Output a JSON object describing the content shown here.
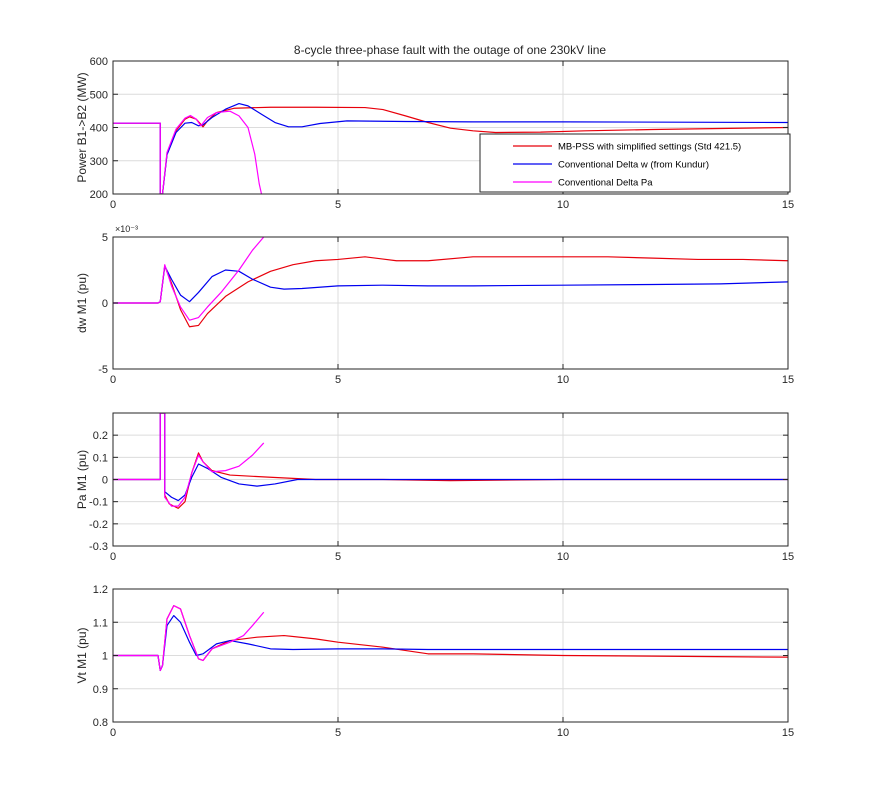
{
  "figure": {
    "title": "8-cycle three-phase fault with the outage of one 230kV line"
  },
  "colors": {
    "mbpss": "#e8000b",
    "delta_w": "#0000f0",
    "delta_pa": "#ff00ff",
    "grid": "#dcdcdc",
    "axis": "#262626"
  },
  "chart_data": [
    {
      "type": "line",
      "panel": "power",
      "ylabel": "Power B1->B2 (MW)",
      "xlabel": "",
      "xlim": [
        0,
        15
      ],
      "ylim": [
        200,
        600
      ],
      "xticks": [
        0,
        5,
        10,
        15
      ],
      "yticks": [
        200,
        300,
        400,
        500,
        600
      ],
      "grid": true,
      "legend": {
        "position": "right-inside",
        "entries": [
          "MB-PSS with simplified settings (Std 421.5)",
          "Conventional Delta w (from Kundur)",
          "Conventional Delta Pa"
        ]
      },
      "series": [
        {
          "name": "MB-PSS with simplified settings (Std 421.5)",
          "color": "#e8000b",
          "points": [
            [
              0,
              413
            ],
            [
              1.05,
              413
            ],
            [
              1.05,
              200
            ],
            [
              1.1,
              200
            ],
            [
              1.2,
              320
            ],
            [
              1.4,
              390
            ],
            [
              1.6,
              425
            ],
            [
              1.7,
              432
            ],
            [
              1.85,
              425
            ],
            [
              2.0,
              402
            ],
            [
              2.1,
              420
            ],
            [
              2.3,
              445
            ],
            [
              2.7,
              458
            ],
            [
              3.5,
              461
            ],
            [
              4.5,
              461
            ],
            [
              5.6,
              460
            ],
            [
              6.0,
              454
            ],
            [
              6.5,
              435
            ],
            [
              7.0,
              415
            ],
            [
              7.5,
              398
            ],
            [
              8.0,
              390
            ],
            [
              8.5,
              385
            ],
            [
              9.5,
              386
            ],
            [
              10.5,
              390
            ],
            [
              12,
              394
            ],
            [
              13.5,
              397
            ],
            [
              15,
              400
            ]
          ]
        },
        {
          "name": "Conventional Delta w (from Kundur)",
          "color": "#0000f0",
          "points": [
            [
              0,
              413
            ],
            [
              1.05,
              413
            ],
            [
              1.05,
              200
            ],
            [
              1.1,
              200
            ],
            [
              1.2,
              318
            ],
            [
              1.4,
              385
            ],
            [
              1.6,
              413
            ],
            [
              1.75,
              415
            ],
            [
              1.9,
              405
            ],
            [
              2.0,
              408
            ],
            [
              2.2,
              430
            ],
            [
              2.5,
              455
            ],
            [
              2.8,
              472
            ],
            [
              3.0,
              465
            ],
            [
              3.3,
              440
            ],
            [
              3.6,
              415
            ],
            [
              3.9,
              402
            ],
            [
              4.2,
              402
            ],
            [
              4.6,
              412
            ],
            [
              5.2,
              420
            ],
            [
              6.5,
              418
            ],
            [
              8,
              417
            ],
            [
              10,
              417
            ],
            [
              12.5,
              416
            ],
            [
              15,
              415
            ]
          ]
        },
        {
          "name": "Conventional Delta Pa",
          "color": "#ff00ff",
          "points": [
            [
              0,
              413
            ],
            [
              1.05,
              413
            ],
            [
              1.05,
              200
            ],
            [
              1.1,
              200
            ],
            [
              1.2,
              325
            ],
            [
              1.4,
              395
            ],
            [
              1.6,
              428
            ],
            [
              1.72,
              436
            ],
            [
              1.85,
              425
            ],
            [
              1.95,
              405
            ],
            [
              2.1,
              430
            ],
            [
              2.3,
              445
            ],
            [
              2.6,
              449
            ],
            [
              2.8,
              435
            ],
            [
              3.0,
              400
            ],
            [
              3.15,
              320
            ],
            [
              3.25,
              230
            ],
            [
              3.3,
              200
            ]
          ]
        }
      ]
    },
    {
      "type": "line",
      "panel": "dw",
      "ylabel": "dw M1 (pu)",
      "xlabel": "",
      "xlim": [
        0,
        15
      ],
      "ylim": [
        -5,
        5
      ],
      "xticks": [
        0,
        5,
        10,
        15
      ],
      "yticks": [
        -5,
        0,
        5
      ],
      "scale_label": "×10⁻³",
      "grid": true,
      "series": [
        {
          "name": "MB-PSS with simplified settings (Std 421.5)",
          "color": "#e8000b",
          "points": [
            [
              0,
              0
            ],
            [
              1.0,
              0
            ],
            [
              1.05,
              0.1
            ],
            [
              1.15,
              2.8
            ],
            [
              1.3,
              1.5
            ],
            [
              1.5,
              -0.5
            ],
            [
              1.7,
              -1.8
            ],
            [
              1.9,
              -1.7
            ],
            [
              2.1,
              -0.8
            ],
            [
              2.5,
              0.5
            ],
            [
              3,
              1.6
            ],
            [
              3.5,
              2.4
            ],
            [
              4,
              2.9
            ],
            [
              4.5,
              3.2
            ],
            [
              5,
              3.3
            ],
            [
              5.6,
              3.5
            ],
            [
              6.3,
              3.2
            ],
            [
              7,
              3.2
            ],
            [
              8,
              3.5
            ],
            [
              9,
              3.5
            ],
            [
              10,
              3.5
            ],
            [
              11,
              3.5
            ],
            [
              12,
              3.4
            ],
            [
              13,
              3.3
            ],
            [
              14,
              3.3
            ],
            [
              15,
              3.2
            ]
          ]
        },
        {
          "name": "Conventional Delta w (from Kundur)",
          "color": "#0000f0",
          "points": [
            [
              0,
              0
            ],
            [
              1.0,
              0
            ],
            [
              1.05,
              0.1
            ],
            [
              1.15,
              2.8
            ],
            [
              1.3,
              1.8
            ],
            [
              1.5,
              0.6
            ],
            [
              1.7,
              0.1
            ],
            [
              1.9,
              0.8
            ],
            [
              2.2,
              2.0
            ],
            [
              2.5,
              2.5
            ],
            [
              2.8,
              2.4
            ],
            [
              3.1,
              1.8
            ],
            [
              3.5,
              1.2
            ],
            [
              3.8,
              1.05
            ],
            [
              4.2,
              1.1
            ],
            [
              5,
              1.3
            ],
            [
              6,
              1.35
            ],
            [
              7,
              1.3
            ],
            [
              8,
              1.3
            ],
            [
              10,
              1.35
            ],
            [
              12,
              1.4
            ],
            [
              13.5,
              1.45
            ],
            [
              15,
              1.6
            ]
          ]
        },
        {
          "name": "Conventional Delta Pa",
          "color": "#ff00ff",
          "points": [
            [
              0,
              0
            ],
            [
              1.0,
              0
            ],
            [
              1.05,
              0.1
            ],
            [
              1.15,
              2.9
            ],
            [
              1.3,
              1.3
            ],
            [
              1.5,
              -0.3
            ],
            [
              1.7,
              -1.3
            ],
            [
              1.9,
              -1.1
            ],
            [
              2.1,
              -0.3
            ],
            [
              2.4,
              0.8
            ],
            [
              2.8,
              2.5
            ],
            [
              3.1,
              4
            ],
            [
              3.35,
              5
            ]
          ]
        }
      ]
    },
    {
      "type": "line",
      "panel": "pa",
      "ylabel": "Pa M1 (pu)",
      "xlabel": "",
      "xlim": [
        0,
        15
      ],
      "ylim": [
        -0.3,
        0.3
      ],
      "xticks": [
        0,
        5,
        10,
        15
      ],
      "yticks": [
        -0.3,
        -0.2,
        -0.1,
        0,
        0.1,
        0.2
      ],
      "grid": true,
      "series": [
        {
          "name": "MB-PSS with simplified settings (Std 421.5)",
          "color": "#e8000b",
          "points": [
            [
              0,
              0
            ],
            [
              1.05,
              0
            ],
            [
              1.05,
              0.3
            ],
            [
              1.15,
              0.3
            ],
            [
              1.15,
              -0.07
            ],
            [
              1.25,
              -0.11
            ],
            [
              1.45,
              -0.13
            ],
            [
              1.6,
              -0.1
            ],
            [
              1.75,
              0.03
            ],
            [
              1.9,
              0.12
            ],
            [
              2.0,
              0.08
            ],
            [
              2.2,
              0.04
            ],
            [
              2.6,
              0.02
            ],
            [
              3.5,
              0.01
            ],
            [
              4.5,
              0.0
            ],
            [
              6,
              0
            ],
            [
              7.5,
              -0.005
            ],
            [
              10,
              0
            ],
            [
              15,
              0
            ]
          ]
        },
        {
          "name": "Conventional Delta w (from Kundur)",
          "color": "#0000f0",
          "points": [
            [
              0,
              0
            ],
            [
              1.05,
              0
            ],
            [
              1.05,
              0.3
            ],
            [
              1.15,
              0.3
            ],
            [
              1.15,
              -0.055
            ],
            [
              1.3,
              -0.08
            ],
            [
              1.45,
              -0.095
            ],
            [
              1.6,
              -0.07
            ],
            [
              1.75,
              0.01
            ],
            [
              1.9,
              0.07
            ],
            [
              2.1,
              0.05
            ],
            [
              2.4,
              0.01
            ],
            [
              2.8,
              -0.02
            ],
            [
              3.2,
              -0.03
            ],
            [
              3.6,
              -0.02
            ],
            [
              4.1,
              0.0
            ],
            [
              5,
              0.0
            ],
            [
              7,
              0
            ],
            [
              10,
              0
            ],
            [
              15,
              0
            ]
          ]
        },
        {
          "name": "Conventional Delta Pa",
          "color": "#ff00ff",
          "points": [
            [
              0,
              0
            ],
            [
              1.05,
              0
            ],
            [
              1.05,
              0.3
            ],
            [
              1.15,
              0.3
            ],
            [
              1.15,
              -0.08
            ],
            [
              1.3,
              -0.12
            ],
            [
              1.45,
              -0.12
            ],
            [
              1.6,
              -0.08
            ],
            [
              1.75,
              0.03
            ],
            [
              1.9,
              0.11
            ],
            [
              2.0,
              0.08
            ],
            [
              2.2,
              0.035
            ],
            [
              2.5,
              0.04
            ],
            [
              2.8,
              0.06
            ],
            [
              3.1,
              0.11
            ],
            [
              3.35,
              0.165
            ]
          ]
        }
      ]
    },
    {
      "type": "line",
      "panel": "vt",
      "ylabel": "Vt M1 (pu)",
      "xlabel": "",
      "xlim": [
        0,
        15
      ],
      "ylim": [
        0.8,
        1.2
      ],
      "xticks": [
        0,
        5,
        10,
        15
      ],
      "yticks": [
        0.8,
        0.9,
        1,
        1.1,
        1.2
      ],
      "grid": true,
      "series": [
        {
          "name": "MB-PSS with simplified settings (Std 421.5)",
          "color": "#e8000b",
          "points": [
            [
              0,
              1.0
            ],
            [
              1.0,
              1.0
            ],
            [
              1.05,
              0.955
            ],
            [
              1.1,
              0.97
            ],
            [
              1.2,
              1.11
            ],
            [
              1.35,
              1.15
            ],
            [
              1.5,
              1.14
            ],
            [
              1.7,
              1.06
            ],
            [
              1.9,
              0.99
            ],
            [
              2.0,
              0.985
            ],
            [
              2.2,
              1.02
            ],
            [
              2.6,
              1.045
            ],
            [
              3.2,
              1.055
            ],
            [
              3.8,
              1.06
            ],
            [
              4.5,
              1.05
            ],
            [
              5,
              1.04
            ],
            [
              6,
              1.025
            ],
            [
              7,
              1.005
            ],
            [
              8,
              1.005
            ],
            [
              10,
              1.0
            ],
            [
              12,
              0.998
            ],
            [
              15,
              0.995
            ]
          ]
        },
        {
          "name": "Conventional Delta w (from Kundur)",
          "color": "#0000f0",
          "points": [
            [
              0,
              1.0
            ],
            [
              1.0,
              1.0
            ],
            [
              1.05,
              0.955
            ],
            [
              1.1,
              0.97
            ],
            [
              1.2,
              1.09
            ],
            [
              1.35,
              1.12
            ],
            [
              1.5,
              1.1
            ],
            [
              1.7,
              1.04
            ],
            [
              1.85,
              1.0
            ],
            [
              2.0,
              1.005
            ],
            [
              2.3,
              1.035
            ],
            [
              2.6,
              1.045
            ],
            [
              3.0,
              1.035
            ],
            [
              3.5,
              1.02
            ],
            [
              4,
              1.018
            ],
            [
              5,
              1.02
            ],
            [
              6,
              1.02
            ],
            [
              7,
              1.018
            ],
            [
              10,
              1.018
            ],
            [
              15,
              1.018
            ]
          ]
        },
        {
          "name": "Conventional Delta Pa",
          "color": "#ff00ff",
          "points": [
            [
              0,
              1.0
            ],
            [
              1.0,
              1.0
            ],
            [
              1.05,
              0.955
            ],
            [
              1.1,
              0.97
            ],
            [
              1.2,
              1.11
            ],
            [
              1.35,
              1.15
            ],
            [
              1.5,
              1.14
            ],
            [
              1.7,
              1.06
            ],
            [
              1.9,
              0.99
            ],
            [
              2.0,
              0.985
            ],
            [
              2.2,
              1.02
            ],
            [
              2.6,
              1.04
            ],
            [
              2.9,
              1.06
            ],
            [
              3.1,
              1.09
            ],
            [
              3.35,
              1.13
            ]
          ]
        }
      ]
    }
  ]
}
